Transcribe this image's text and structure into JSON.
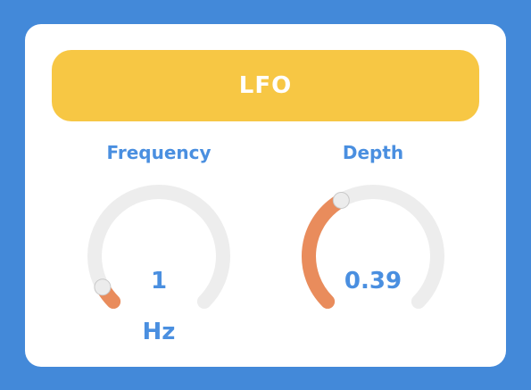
{
  "title": "LFO",
  "colors": {
    "background": "#4389d9",
    "panel": "#ffffff",
    "header": "#f7c744",
    "accent_text": "#4a8fe0",
    "track": "#ededed",
    "fill": "#e98c5c",
    "handle": "#ececec"
  },
  "knobs": [
    {
      "id": "frequency",
      "label": "Frequency",
      "value": "1",
      "unit": "Hz",
      "level": 0.06
    },
    {
      "id": "depth",
      "label": "Depth",
      "value": "0.39",
      "unit": "",
      "level": 0.39
    }
  ]
}
